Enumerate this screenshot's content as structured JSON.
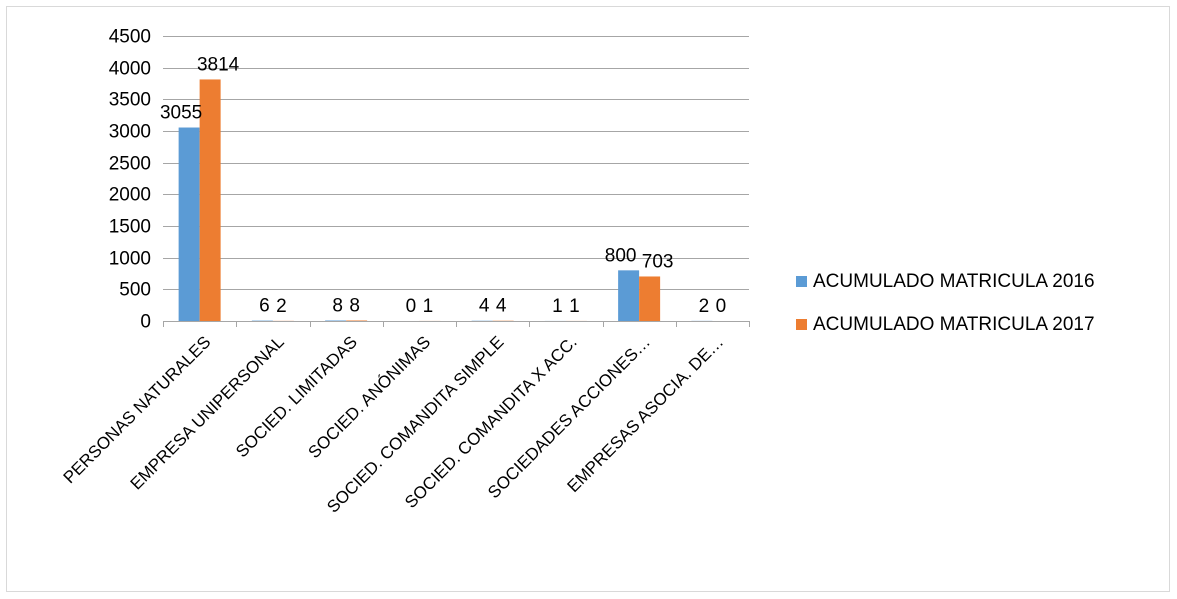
{
  "chart_data": {
    "type": "bar",
    "title": "",
    "xlabel": "",
    "ylabel": "",
    "ylim": [
      0,
      4500
    ],
    "yticks": [
      0,
      500,
      1000,
      1500,
      2000,
      2500,
      3000,
      3500,
      4000,
      4500
    ],
    "grid": true,
    "legend_position": "right",
    "categories": [
      "PERSONAS NATURALES",
      "EMPRESA UNIPERSONAL",
      "SOCIED. LIMITADAS",
      "SOCIED. ANÓNIMAS",
      "SOCIED. COMANDITA SIMPLE",
      "SOCIED. COMANDITA X ACC.",
      "SOCIEDADES ACCIONES…",
      "EMPRESAS ASOCIA. DE…"
    ],
    "series": [
      {
        "name": "ACUMULADO MATRICULA 2016",
        "color": "#5b9bd5",
        "values": [
          3055,
          6,
          8,
          0,
          4,
          1,
          800,
          2
        ]
      },
      {
        "name": "ACUMULADO MATRICULA 2017",
        "color": "#ed7d31",
        "values": [
          3814,
          2,
          8,
          1,
          4,
          1,
          703,
          0
        ]
      }
    ]
  }
}
